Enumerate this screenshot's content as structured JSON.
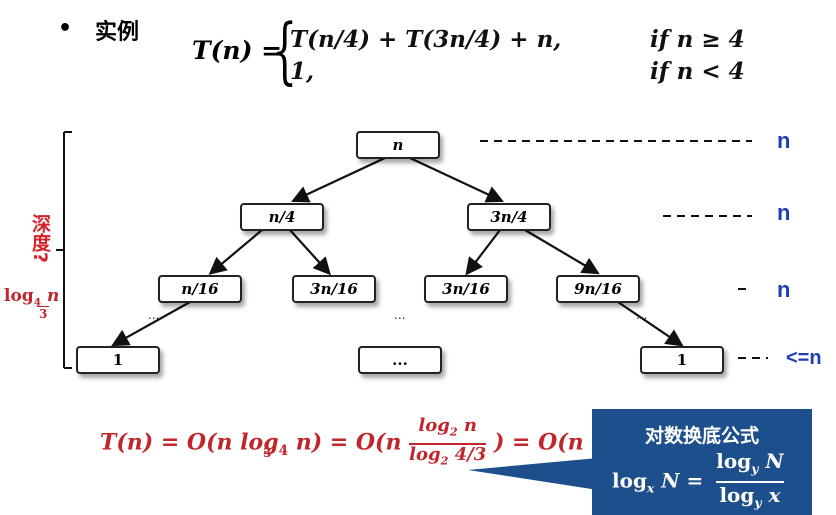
{
  "header": {
    "bullet": "•",
    "title": "实例"
  },
  "recurrence": {
    "lhs": "T(n) =",
    "case1": "T(n/4) + T(3n/4) + n,",
    "cond1": "if n ≥ 4",
    "case2": "1,",
    "cond2": "if n < 4"
  },
  "tree": {
    "root": "n",
    "level1": [
      "n/4",
      "3n/4"
    ],
    "level2": [
      "n/16",
      "3n/16",
      "3n/16",
      "9n/16"
    ],
    "leaves": [
      "1",
      "...",
      "1"
    ],
    "dots": "..."
  },
  "row_costs": [
    "n",
    "n",
    "n",
    "<=n"
  ],
  "depth_label": {
    "text": "深度?",
    "log_base_num": "4",
    "log_base_den": "3",
    "log_arg": "n"
  },
  "formula": {
    "lhs": "T(n) = O(n log",
    "base_num": "4",
    "base_den": "3",
    "after1": "n)  = O(n",
    "frac_num": "log",
    "frac_num_sub": "2",
    "frac_num_arg": "n",
    "frac_den": "log",
    "frac_den_sub": "2",
    "frac_den_num": "4",
    "frac_den_den": "3",
    "after2": ") = O(n log n)"
  },
  "callout": {
    "title": "对数换底公式",
    "lhs": "log",
    "lhs_sub": "x",
    "lhs_arg": "N =",
    "num": "log",
    "num_sub": "y",
    "num_arg": "N",
    "den": "log",
    "den_sub": "y",
    "den_arg": "x"
  },
  "colors": {
    "red": "#c0262b",
    "blue": "#1f3fb8",
    "callout_bg": "#1d4f8c"
  }
}
